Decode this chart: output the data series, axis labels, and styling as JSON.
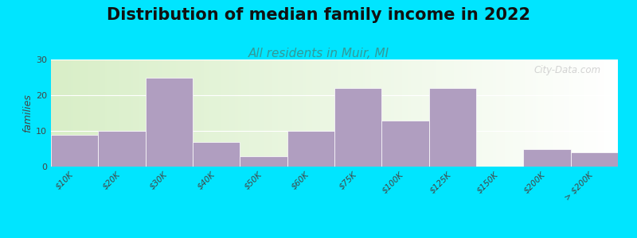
{
  "title": "Distribution of median family income in 2022",
  "subtitle": "All residents in Muir, MI",
  "ylabel": "families",
  "categories": [
    "$10K",
    "$20K",
    "$30K",
    "$40K",
    "$50K",
    "$60K",
    "$75K",
    "$100K",
    "$125K",
    "$150K",
    "$200K",
    "> $200K"
  ],
  "values": [
    9,
    10,
    25,
    7,
    3,
    10,
    22,
    13,
    22,
    0,
    5,
    4
  ],
  "bar_color": "#b09ec0",
  "background_outer": "#00e5ff",
  "ylim": [
    0,
    30
  ],
  "yticks": [
    0,
    10,
    20,
    30
  ],
  "title_fontsize": 15,
  "subtitle_fontsize": 11,
  "ylabel_fontsize": 9,
  "watermark": "City-Data.com"
}
